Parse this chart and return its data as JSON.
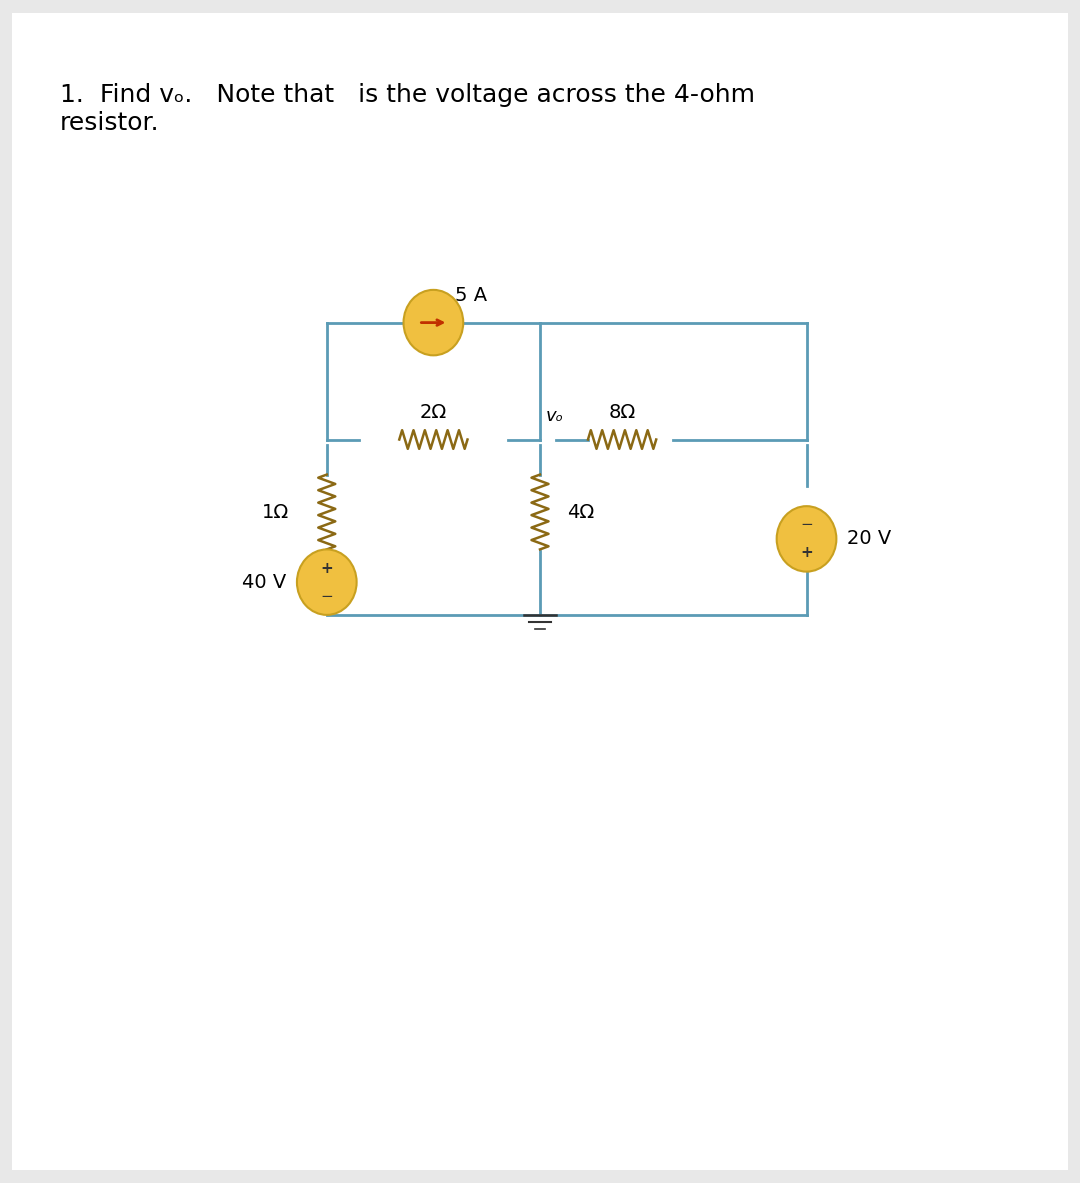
{
  "bg_color": "#e8e8e8",
  "white_bg": "#ffffff",
  "circuit_line_color": "#5b9bb5",
  "resistor_color": "#8b6914",
  "source_fill": "#f0c040",
  "source_edge": "#c8a020",
  "arrow_color": "#c03000",
  "text_color": "#000000",
  "title_text": "1.  Find vₒ.   Note that   is the voltage across the 4-ohm\nresistor.",
  "label_5A": "5 A",
  "label_2ohm": "2Ω",
  "label_1ohm": "1Ω",
  "label_8ohm": "8Ω",
  "label_4ohm": "4Ω",
  "label_40V": "40 V",
  "label_20V": "20 V",
  "label_vo": "vₒ",
  "title_fontsize": 18,
  "label_fontsize": 14
}
